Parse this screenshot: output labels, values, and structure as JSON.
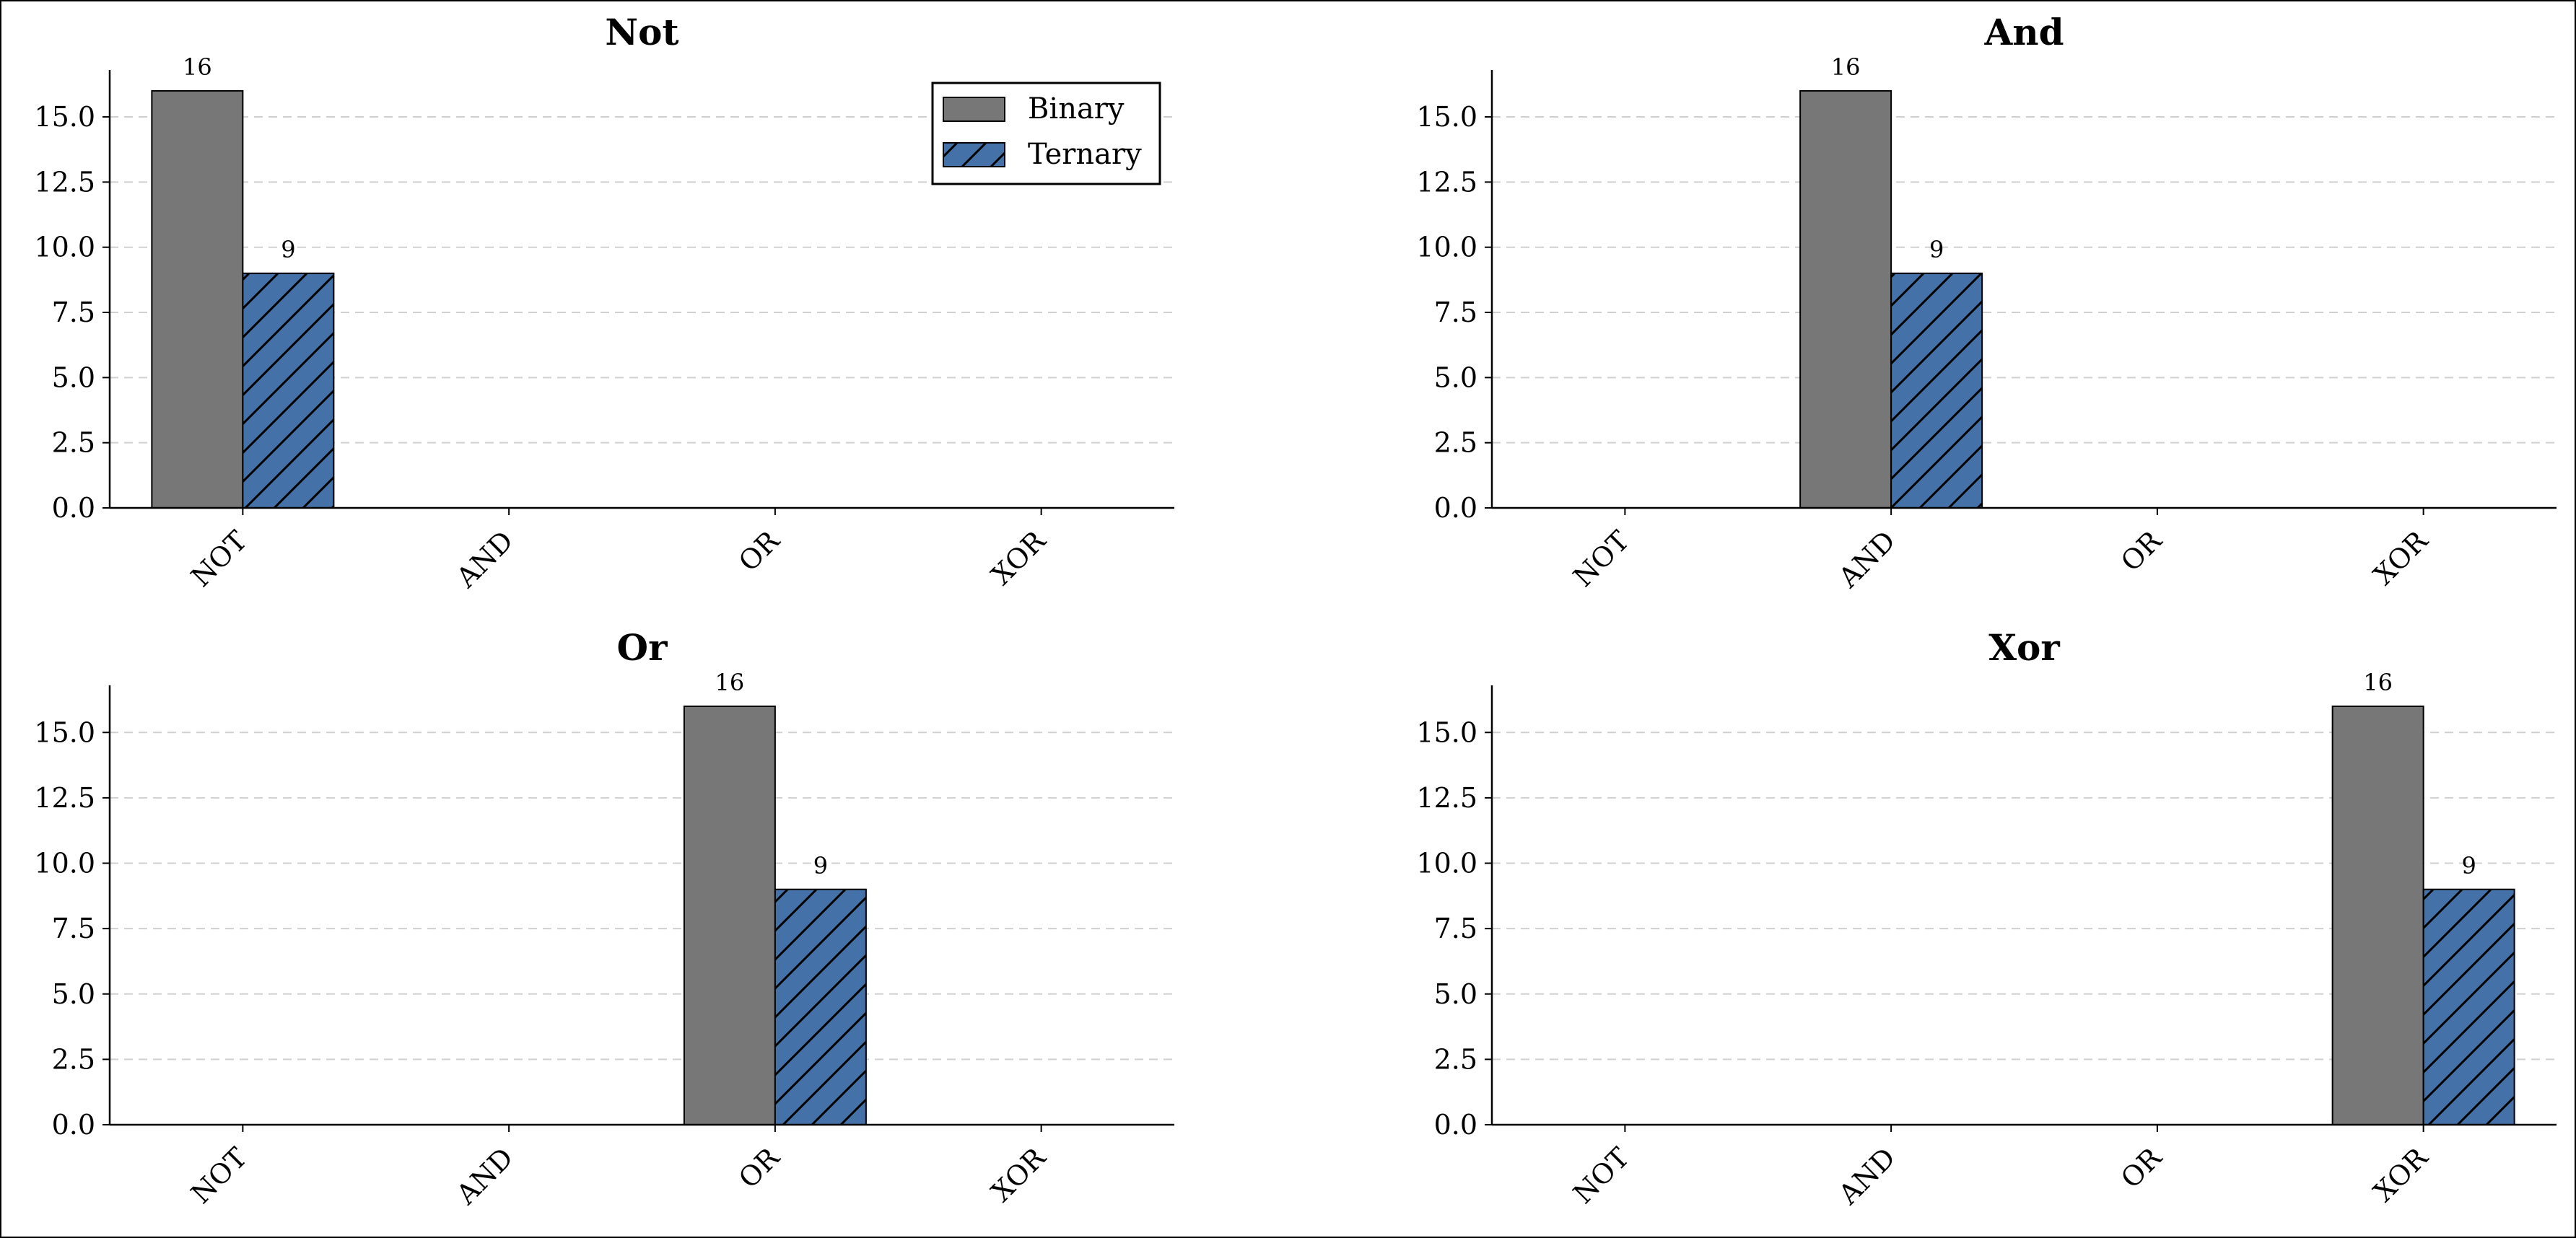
{
  "chart_data": [
    {
      "type": "bar",
      "title": "Not",
      "categories": [
        "NOT",
        "AND",
        "OR",
        "XOR"
      ],
      "series": [
        {
          "name": "Binary",
          "values": [
            16,
            0,
            0,
            0
          ]
        },
        {
          "name": "Ternary",
          "values": [
            9,
            0,
            0,
            0
          ]
        }
      ],
      "ylim": [
        0,
        16.8
      ],
      "yticks": [
        "0.0",
        "2.5",
        "5.0",
        "7.5",
        "10.0",
        "12.5",
        "15.0"
      ],
      "grid": "y-dashed",
      "legend": "top-right"
    },
    {
      "type": "bar",
      "title": "And",
      "categories": [
        "NOT",
        "AND",
        "OR",
        "XOR"
      ],
      "series": [
        {
          "name": "Binary",
          "values": [
            0,
            16,
            0,
            0
          ]
        },
        {
          "name": "Ternary",
          "values": [
            0,
            9,
            0,
            0
          ]
        }
      ],
      "ylim": [
        0,
        16.8
      ],
      "yticks": [
        "0.0",
        "2.5",
        "5.0",
        "7.5",
        "10.0",
        "12.5",
        "15.0"
      ],
      "grid": "y-dashed"
    },
    {
      "type": "bar",
      "title": "Or",
      "categories": [
        "NOT",
        "AND",
        "OR",
        "XOR"
      ],
      "series": [
        {
          "name": "Binary",
          "values": [
            0,
            0,
            16,
            0
          ]
        },
        {
          "name": "Ternary",
          "values": [
            0,
            0,
            9,
            0
          ]
        }
      ],
      "ylim": [
        0,
        16.8
      ],
      "yticks": [
        "0.0",
        "2.5",
        "5.0",
        "7.5",
        "10.0",
        "12.5",
        "15.0"
      ],
      "grid": "y-dashed"
    },
    {
      "type": "bar",
      "title": "Xor",
      "categories": [
        "NOT",
        "AND",
        "OR",
        "XOR"
      ],
      "series": [
        {
          "name": "Binary",
          "values": [
            0,
            0,
            0,
            16
          ]
        },
        {
          "name": "Ternary",
          "values": [
            0,
            0,
            0,
            9
          ]
        }
      ],
      "ylim": [
        0,
        16.8
      ],
      "yticks": [
        "0.0",
        "2.5",
        "5.0",
        "7.5",
        "10.0",
        "12.5",
        "15.0"
      ],
      "grid": "y-dashed"
    }
  ],
  "colors": {
    "binary": "#777777",
    "ternary": "#4472a8",
    "grid": "#d0d0d0",
    "axis": "#000000"
  }
}
